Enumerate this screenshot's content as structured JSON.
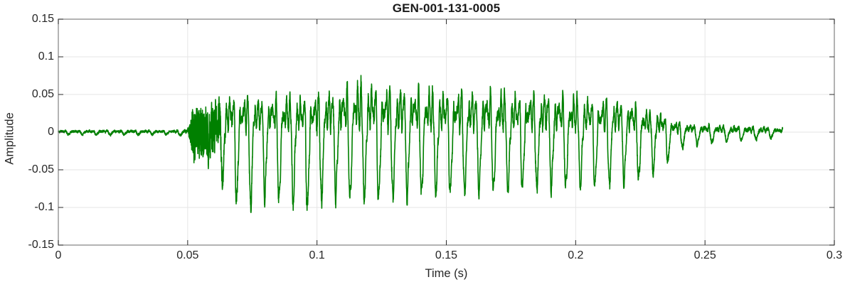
{
  "figure": {
    "background": "#ffffff"
  },
  "chart_data": {
    "type": "line",
    "title": "GEN-001-131-0005",
    "xlabel": "Time (s)",
    "ylabel": "Amplitude",
    "xlim": [
      0,
      0.3
    ],
    "ylim": [
      -0.15,
      0.15
    ],
    "xticks": [
      0,
      0.05,
      0.1,
      0.15,
      0.2,
      0.25,
      0.3
    ],
    "xtick_labels": [
      "0",
      "0.05",
      "0.1",
      "0.15",
      "0.2",
      "0.25",
      "0.3"
    ],
    "yticks": [
      -0.15,
      -0.1,
      -0.05,
      0,
      0.05,
      0.1,
      0.15
    ],
    "ytick_labels": [
      "-0.15",
      "-0.1",
      "-0.05",
      "0",
      "0.05",
      "0.1",
      "0.15"
    ],
    "grid": true,
    "legend": "none",
    "line_color": "#008000",
    "axis_box_color": "#8a8a8a",
    "grid_color": "#e6e6e6",
    "tick_mark_color": "#2b2b2b",
    "text_color": "#262626",
    "title_color": "#1a1a1a",
    "series": [
      {
        "name": "waveform",
        "description": "speech-like acoustic waveform: near-silence 0-0.051 s, noisy onset burst 0.052-0.059 s, quasi-periodic voiced segment ~180 Hz peaking at amplitude 0.119 near t=0.115 s and minimum -0.106 near t=0.072 s, decaying to small ripple that ends at t=0.28 s"
      }
    ],
    "signal": {
      "t_start": 0,
      "t_end": 0.28,
      "dt": 5e-05,
      "f0_hz": 186,
      "f0_drift_hz_per_s": -40,
      "harmonic_norm": 0.95,
      "harmonics": [
        [
          1,
          0.5,
          0
        ],
        [
          2,
          0.33,
          1.7
        ],
        [
          3,
          0.22,
          3.6
        ],
        [
          4,
          0.1,
          0.9
        ],
        [
          5.4,
          0.09,
          2.2
        ],
        [
          8.2,
          0.05,
          0.4
        ]
      ],
      "envelope_upper": [
        [
          0,
          0.004
        ],
        [
          0.02,
          0.005
        ],
        [
          0.044,
          0.004
        ],
        [
          0.05,
          0.007
        ],
        [
          0.052,
          0.048
        ],
        [
          0.056,
          0.038
        ],
        [
          0.06,
          0.052
        ],
        [
          0.063,
          0.088
        ],
        [
          0.07,
          0.087
        ],
        [
          0.078,
          0.08
        ],
        [
          0.086,
          0.087
        ],
        [
          0.095,
          0.085
        ],
        [
          0.103,
          0.093
        ],
        [
          0.109,
          0.1
        ],
        [
          0.115,
          0.119
        ],
        [
          0.123,
          0.114
        ],
        [
          0.131,
          0.103
        ],
        [
          0.14,
          0.102
        ],
        [
          0.15,
          0.099
        ],
        [
          0.16,
          0.097
        ],
        [
          0.17,
          0.095
        ],
        [
          0.18,
          0.092
        ],
        [
          0.19,
          0.09
        ],
        [
          0.2,
          0.086
        ],
        [
          0.208,
          0.082
        ],
        [
          0.215,
          0.077
        ],
        [
          0.222,
          0.07
        ],
        [
          0.227,
          0.052
        ],
        [
          0.232,
          0.048
        ],
        [
          0.236,
          0.032
        ],
        [
          0.24,
          0.024
        ],
        [
          0.246,
          0.018
        ],
        [
          0.255,
          0.016
        ],
        [
          0.265,
          0.014
        ],
        [
          0.275,
          0.012
        ],
        [
          0.28,
          0.009
        ]
      ],
      "envelope_lower": [
        [
          0,
          0.004
        ],
        [
          0.02,
          0.005
        ],
        [
          0.044,
          0.004
        ],
        [
          0.05,
          0.007
        ],
        [
          0.052,
          0.042
        ],
        [
          0.056,
          0.046
        ],
        [
          0.06,
          0.052
        ],
        [
          0.063,
          0.072
        ],
        [
          0.068,
          0.09
        ],
        [
          0.072,
          0.106
        ],
        [
          0.08,
          0.088
        ],
        [
          0.09,
          0.096
        ],
        [
          0.097,
          0.103
        ],
        [
          0.105,
          0.085
        ],
        [
          0.112,
          0.088
        ],
        [
          0.12,
          0.09
        ],
        [
          0.13,
          0.086
        ],
        [
          0.14,
          0.083
        ],
        [
          0.15,
          0.081
        ],
        [
          0.16,
          0.079
        ],
        [
          0.17,
          0.077
        ],
        [
          0.18,
          0.076
        ],
        [
          0.19,
          0.074
        ],
        [
          0.2,
          0.072
        ],
        [
          0.21,
          0.07
        ],
        [
          0.22,
          0.066
        ],
        [
          0.228,
          0.06
        ],
        [
          0.233,
          0.05
        ],
        [
          0.238,
          0.035
        ],
        [
          0.242,
          0.02
        ],
        [
          0.25,
          0.016
        ],
        [
          0.26,
          0.013
        ],
        [
          0.27,
          0.011
        ],
        [
          0.28,
          0.008
        ]
      ],
      "noise_fraction": [
        [
          0,
          0.3
        ],
        [
          0.05,
          0.3
        ],
        [
          0.0515,
          0.8
        ],
        [
          0.059,
          0.8
        ],
        [
          0.064,
          0.12
        ],
        [
          0.07,
          0.07
        ],
        [
          0.22,
          0.07
        ],
        [
          0.235,
          0.12
        ],
        [
          0.28,
          0.2
        ]
      ]
    }
  }
}
